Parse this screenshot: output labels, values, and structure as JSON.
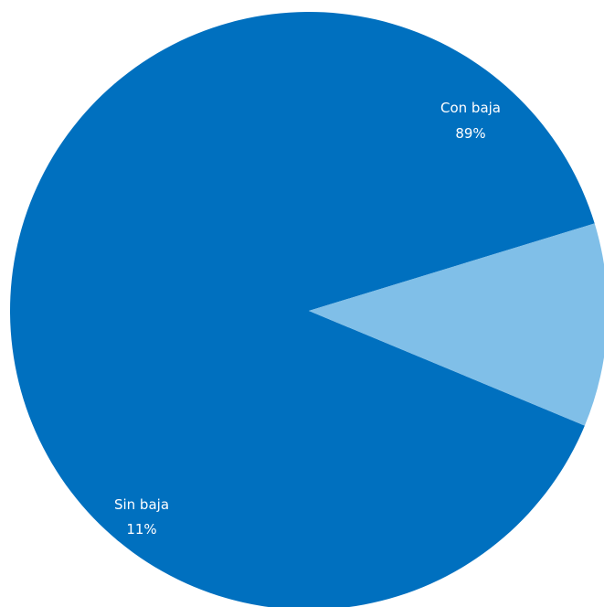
{
  "chart_data": {
    "type": "pie",
    "slices": [
      {
        "label": "Con baja",
        "value": 89,
        "display": "89%",
        "color": "#0070BF"
      },
      {
        "label": "Sin baja",
        "value": 11,
        "display": "11%",
        "color": "#80BFE8"
      }
    ]
  }
}
